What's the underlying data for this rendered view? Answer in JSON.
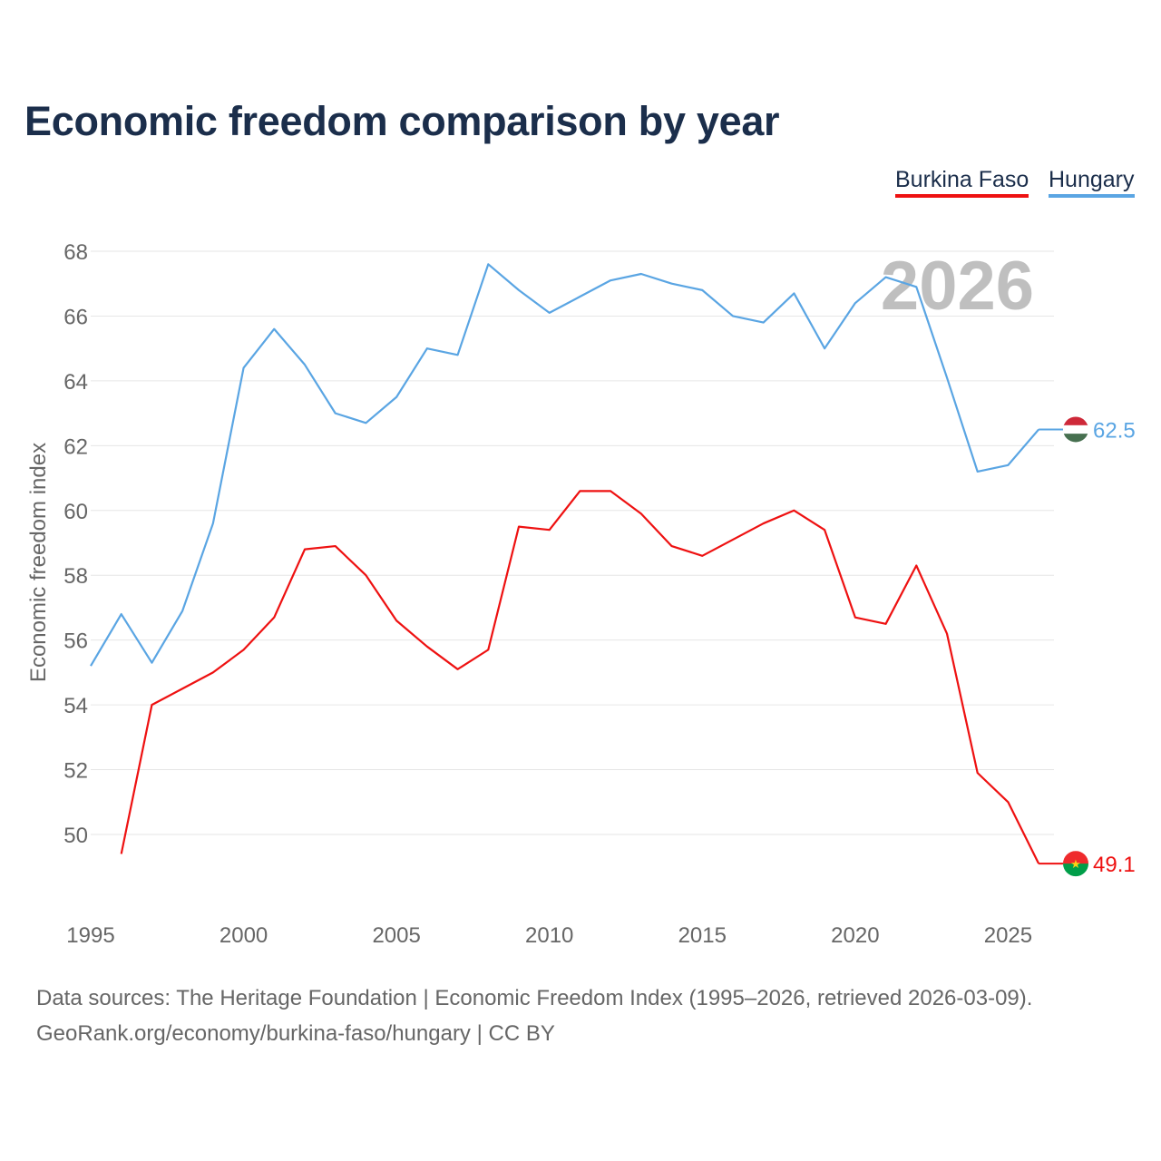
{
  "page": {
    "source_line_1": "Data sources: The Heritage Foundation | Economic Freedom Index (1995–2026, retrieved 2026-03-09).",
    "source_line_2": "GeoRank.org/economy/burkina-faso/hungary | CC BY"
  },
  "chart_data": {
    "type": "line",
    "title": "Economic freedom comparison by year",
    "xlabel": "",
    "ylabel": "Economic freedom index",
    "watermark_year": "2026",
    "xlim": [
      1995,
      2026.5
    ],
    "ylim": [
      47.5,
      69
    ],
    "x_ticks": [
      1995,
      2000,
      2005,
      2010,
      2015,
      2020,
      2025
    ],
    "y_ticks": [
      50,
      52,
      54,
      56,
      58,
      60,
      62,
      64,
      66,
      68
    ],
    "grid": true,
    "legend_position": "top-right",
    "x": [
      1995,
      1996,
      1997,
      1998,
      1999,
      2000,
      2001,
      2002,
      2003,
      2004,
      2005,
      2006,
      2007,
      2008,
      2009,
      2010,
      2011,
      2012,
      2013,
      2014,
      2015,
      2016,
      2017,
      2018,
      2019,
      2020,
      2021,
      2022,
      2023,
      2024,
      2025,
      2026
    ],
    "series": [
      {
        "name": "Burkina Faso",
        "color": "#ee1111",
        "end_label": "49.1",
        "flag_colors": [
          "#ef2b2d",
          "#009e49",
          "#fcd116"
        ],
        "values": [
          null,
          49.4,
          54.0,
          54.5,
          55.0,
          55.7,
          56.7,
          58.8,
          58.9,
          58.0,
          56.6,
          55.8,
          55.1,
          55.7,
          59.5,
          59.4,
          60.6,
          60.6,
          59.9,
          58.9,
          58.6,
          59.1,
          59.6,
          60.0,
          59.4,
          56.7,
          56.5,
          58.3,
          56.2,
          51.9,
          51.0,
          49.1
        ]
      },
      {
        "name": "Hungary",
        "color": "#5aa5e3",
        "end_label": "62.5",
        "flag_colors": [
          "#ce2939",
          "#ffffff",
          "#477050"
        ],
        "values": [
          55.2,
          56.8,
          55.3,
          56.9,
          59.6,
          64.4,
          65.6,
          64.5,
          63.0,
          62.7,
          63.5,
          65.0,
          64.8,
          67.6,
          66.8,
          66.1,
          66.6,
          67.1,
          67.3,
          67.0,
          66.8,
          66.0,
          65.8,
          66.7,
          65.0,
          66.4,
          67.2,
          66.9,
          64.1,
          61.2,
          61.4,
          62.5
        ]
      }
    ]
  }
}
